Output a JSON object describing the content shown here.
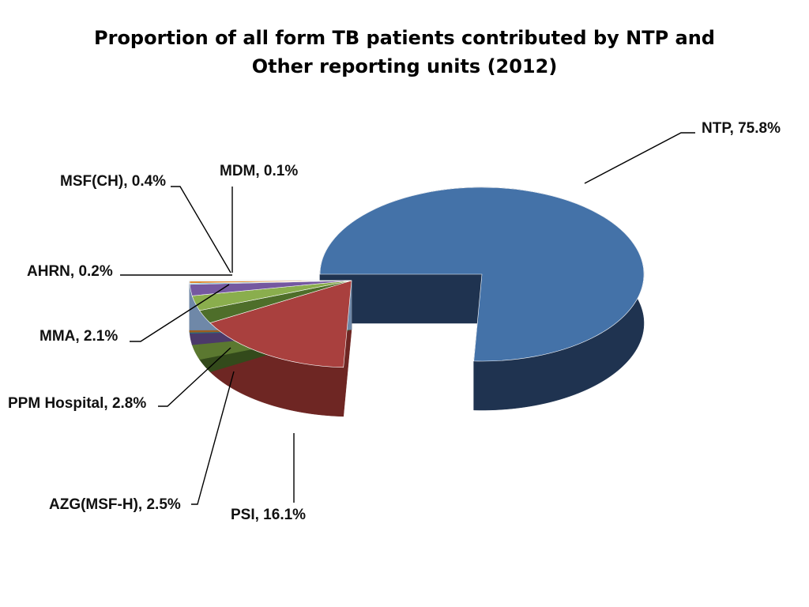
{
  "chart_data": {
    "type": "pie",
    "title_lines": [
      "Proportion of all form TB patients contributed by NTP and",
      "Other reporting units (2012)"
    ],
    "slices": [
      {
        "name": "NTP",
        "value": 75.8,
        "label": "NTP, 75.8%",
        "color": "#4472A8",
        "side": "#1F3350",
        "exploded": true
      },
      {
        "name": "PSI",
        "value": 16.1,
        "label": "PSI, 16.1%",
        "color": "#A9403E",
        "side": "#6E2623"
      },
      {
        "name": "AZG(MSF-H)",
        "value": 2.5,
        "label": "AZG(MSF-H), 2.5%",
        "color": "#4E6E2A",
        "side": "#334A1B"
      },
      {
        "name": "PPM Hospital",
        "value": 2.8,
        "label": "PPM Hospital,  2.8%",
        "color": "#8AAE4D",
        "side": "#5B7830"
      },
      {
        "name": "MMA",
        "value": 2.1,
        "label": "MMA, 2.1%",
        "color": "#7558A0",
        "side": "#4C3A6A"
      },
      {
        "name": "AHRN",
        "value": 0.2,
        "label": "AHRN, 0.2%",
        "color": "#3E9BB8",
        "side": "#2A6D82"
      },
      {
        "name": "MSF(CH)",
        "value": 0.4,
        "label": "MSF(CH), 0.4%",
        "color": "#E0892E",
        "side": "#9E5E1E"
      },
      {
        "name": "MDM",
        "value": 0.1,
        "label": "MDM, 0.1%",
        "color": "#A8C0DE",
        "side": "#6F88A8"
      }
    ]
  }
}
